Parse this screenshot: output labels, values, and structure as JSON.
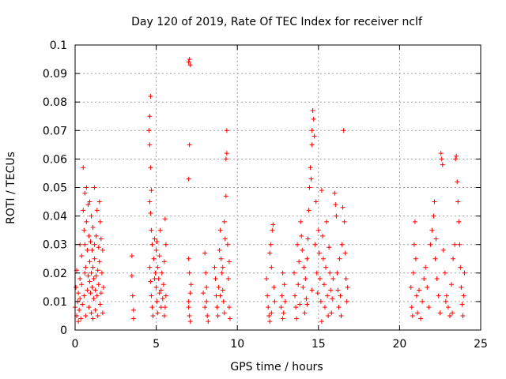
{
  "chart_data": {
    "type": "scatter",
    "title": "Day 120 of 2019, Rate Of TEC Index for receiver nclf",
    "xlabel": "GPS time / hours",
    "ylabel": "ROTI / TECUs",
    "xlim": [
      0,
      25
    ],
    "ylim": [
      0,
      0.1
    ],
    "xticks": [
      0,
      5,
      10,
      15,
      20,
      25
    ],
    "xtick_labels": [
      "0",
      "5",
      "10",
      "15",
      "20",
      "25"
    ],
    "yticks": [
      0,
      0.01,
      0.02,
      0.03,
      0.04,
      0.05,
      0.06,
      0.07,
      0.08,
      0.09,
      0.1
    ],
    "ytick_labels": [
      "0",
      "0.01",
      "0.02",
      "0.03",
      "0.04",
      "0.05",
      "0.06",
      "0.07",
      "0.08",
      "0.09",
      "0.1"
    ],
    "grid": true,
    "marker": "+",
    "color": "#ff0000",
    "series": [
      {
        "name": "ROTI",
        "points": [
          [
            0.0,
            0.008
          ],
          [
            0.05,
            0.015
          ],
          [
            0.1,
            0.005
          ],
          [
            0.1,
            0.021
          ],
          [
            0.15,
            0.01
          ],
          [
            0.2,
            0.003
          ],
          [
            0.2,
            0.013
          ],
          [
            0.25,
            0.007
          ],
          [
            0.3,
            0.018
          ],
          [
            0.3,
            0.011
          ],
          [
            0.35,
            0.004
          ],
          [
            0.4,
            0.026
          ],
          [
            0.4,
            0.016
          ],
          [
            0.45,
            0.009
          ],
          [
            0.5,
            0.057
          ],
          [
            0.5,
            0.042
          ],
          [
            0.55,
            0.035
          ],
          [
            0.55,
            0.012
          ],
          [
            0.6,
            0.048
          ],
          [
            0.6,
            0.03
          ],
          [
            0.65,
            0.022
          ],
          [
            0.65,
            0.005
          ],
          [
            0.7,
            0.05
          ],
          [
            0.7,
            0.038
          ],
          [
            0.75,
            0.028
          ],
          [
            0.75,
            0.014
          ],
          [
            0.8,
            0.044
          ],
          [
            0.8,
            0.019
          ],
          [
            0.85,
            0.033
          ],
          [
            0.85,
            0.008
          ],
          [
            0.9,
            0.045
          ],
          [
            0.9,
            0.024
          ],
          [
            0.95,
            0.013
          ],
          [
            0.95,
            0.031
          ],
          [
            1.0,
            0.04
          ],
          [
            1.0,
            0.02
          ],
          [
            1.0,
            0.006
          ],
          [
            1.05,
            0.028
          ],
          [
            1.05,
            0.015
          ],
          [
            1.1,
            0.036
          ],
          [
            1.1,
            0.022
          ],
          [
            1.1,
            0.004
          ],
          [
            1.15,
            0.018
          ],
          [
            1.15,
            0.011
          ],
          [
            1.2,
            0.05
          ],
          [
            1.2,
            0.025
          ],
          [
            1.25,
            0.014
          ],
          [
            1.25,
            0.007
          ],
          [
            1.3,
            0.033
          ],
          [
            1.3,
            0.019
          ],
          [
            1.35,
            0.042
          ],
          [
            1.35,
            0.012
          ],
          [
            1.4,
            0.021
          ],
          [
            1.4,
            0.005
          ],
          [
            1.45,
            0.029
          ],
          [
            1.45,
            0.016
          ],
          [
            1.5,
            0.045
          ],
          [
            1.5,
            0.024
          ],
          [
            1.55,
            0.038
          ],
          [
            1.55,
            0.009
          ],
          [
            1.6,
            0.032
          ],
          [
            1.6,
            0.013
          ],
          [
            1.65,
            0.02
          ],
          [
            1.7,
            0.028
          ],
          [
            1.7,
            0.006
          ],
          [
            1.75,
            0.015
          ],
          [
            0.3,
            0.03
          ],
          [
            0.6,
            0.02
          ],
          [
            0.9,
            0.017
          ],
          [
            1.2,
            0.03
          ],
          [
            3.5,
            0.026
          ],
          [
            3.5,
            0.019
          ],
          [
            3.55,
            0.012
          ],
          [
            3.6,
            0.007
          ],
          [
            3.6,
            0.004
          ],
          [
            4.55,
            0.07
          ],
          [
            4.6,
            0.075
          ],
          [
            4.65,
            0.082
          ],
          [
            4.6,
            0.065
          ],
          [
            4.65,
            0.057
          ],
          [
            4.7,
            0.049
          ],
          [
            4.6,
            0.045
          ],
          [
            4.65,
            0.041
          ],
          [
            4.7,
            0.035
          ],
          [
            4.75,
            0.03
          ],
          [
            4.6,
            0.022
          ],
          [
            4.65,
            0.017
          ],
          [
            4.7,
            0.012
          ],
          [
            4.75,
            0.008
          ],
          [
            4.8,
            0.005
          ],
          [
            4.85,
            0.025
          ],
          [
            4.9,
            0.032
          ],
          [
            4.95,
            0.02
          ],
          [
            5.0,
            0.015
          ],
          [
            5.0,
            0.028
          ],
          [
            5.05,
            0.01
          ],
          [
            5.1,
            0.022
          ],
          [
            5.1,
            0.006
          ],
          [
            5.15,
            0.018
          ],
          [
            5.2,
            0.013
          ],
          [
            5.25,
            0.035
          ],
          [
            5.3,
            0.008
          ],
          [
            5.35,
            0.02
          ],
          [
            5.4,
            0.011
          ],
          [
            5.45,
            0.016
          ],
          [
            5.5,
            0.005
          ],
          [
            5.5,
            0.024
          ],
          [
            5.55,
            0.039
          ],
          [
            5.6,
            0.012
          ],
          [
            5.6,
            0.03
          ],
          [
            5.55,
            0.008
          ],
          [
            5.3,
            0.014
          ],
          [
            5.2,
            0.026
          ],
          [
            4.9,
            0.018
          ],
          [
            5.05,
            0.031
          ],
          [
            7.0,
            0.094
          ],
          [
            7.05,
            0.095
          ],
          [
            7.1,
            0.093
          ],
          [
            7.05,
            0.065
          ],
          [
            7.0,
            0.053
          ],
          [
            7.0,
            0.025
          ],
          [
            7.05,
            0.02
          ],
          [
            7.1,
            0.013
          ],
          [
            7.0,
            0.01
          ],
          [
            7.05,
            0.005
          ],
          [
            7.1,
            0.003
          ],
          [
            7.0,
            0.008
          ],
          [
            7.15,
            0.016
          ],
          [
            7.9,
            0.013
          ],
          [
            8.0,
            0.027
          ],
          [
            8.05,
            0.02
          ],
          [
            8.1,
            0.01
          ],
          [
            8.15,
            0.005
          ],
          [
            8.2,
            0.003
          ],
          [
            8.0,
            0.008
          ],
          [
            8.1,
            0.015
          ],
          [
            8.6,
            0.022
          ],
          [
            8.65,
            0.018
          ],
          [
            8.7,
            0.012
          ],
          [
            8.75,
            0.008
          ],
          [
            8.8,
            0.005
          ],
          [
            8.85,
            0.015
          ],
          [
            8.9,
            0.028
          ],
          [
            8.95,
            0.035
          ],
          [
            9.0,
            0.025
          ],
          [
            9.05,
            0.02
          ],
          [
            9.1,
            0.014
          ],
          [
            9.15,
            0.01
          ],
          [
            9.2,
            0.006
          ],
          [
            9.25,
            0.032
          ],
          [
            9.3,
            0.047
          ],
          [
            9.3,
            0.06
          ],
          [
            9.35,
            0.062
          ],
          [
            9.35,
            0.07
          ],
          [
            9.4,
            0.03
          ],
          [
            9.45,
            0.018
          ],
          [
            9.5,
            0.024
          ],
          [
            9.5,
            0.008
          ],
          [
            9.55,
            0.004
          ],
          [
            8.95,
            0.012
          ],
          [
            9.1,
            0.022
          ],
          [
            9.2,
            0.038
          ],
          [
            11.8,
            0.018
          ],
          [
            11.85,
            0.012
          ],
          [
            11.9,
            0.008
          ],
          [
            11.95,
            0.005
          ],
          [
            12.0,
            0.027
          ],
          [
            12.05,
            0.03
          ],
          [
            12.1,
            0.022
          ],
          [
            12.15,
            0.035
          ],
          [
            12.2,
            0.037
          ],
          [
            12.25,
            0.015
          ],
          [
            12.3,
            0.01
          ],
          [
            12.0,
            0.003
          ],
          [
            12.1,
            0.006
          ],
          [
            12.7,
            0.008
          ],
          [
            12.75,
            0.012
          ],
          [
            12.8,
            0.004
          ],
          [
            12.85,
            0.006
          ],
          [
            12.9,
            0.016
          ],
          [
            12.95,
            0.01
          ],
          [
            12.8,
            0.02
          ],
          [
            13.5,
            0.02
          ],
          [
            13.55,
            0.012
          ],
          [
            13.6,
            0.008
          ],
          [
            13.65,
            0.004
          ],
          [
            13.7,
            0.03
          ],
          [
            13.75,
            0.016
          ],
          [
            13.8,
            0.024
          ],
          [
            13.85,
            0.009
          ],
          [
            13.9,
            0.038
          ],
          [
            13.95,
            0.033
          ],
          [
            14.0,
            0.028
          ],
          [
            14.05,
            0.015
          ],
          [
            14.1,
            0.022
          ],
          [
            14.15,
            0.006
          ],
          [
            14.2,
            0.018
          ],
          [
            14.25,
            0.011
          ],
          [
            14.3,
            0.025
          ],
          [
            14.35,
            0.032
          ],
          [
            14.4,
            0.042
          ],
          [
            14.45,
            0.05
          ],
          [
            14.5,
            0.057
          ],
          [
            14.55,
            0.053
          ],
          [
            14.6,
            0.065
          ],
          [
            14.6,
            0.07
          ],
          [
            14.65,
            0.077
          ],
          [
            14.7,
            0.074
          ],
          [
            14.75,
            0.068
          ],
          [
            14.8,
            0.03
          ],
          [
            14.85,
            0.045
          ],
          [
            14.9,
            0.02
          ],
          [
            14.95,
            0.013
          ],
          [
            15.0,
            0.035
          ],
          [
            15.05,
            0.027
          ],
          [
            15.1,
            0.018
          ],
          [
            15.15,
            0.01
          ],
          [
            15.2,
            0.049
          ],
          [
            15.25,
            0.033
          ],
          [
            15.3,
            0.025
          ],
          [
            15.35,
            0.016
          ],
          [
            15.4,
            0.008
          ],
          [
            15.45,
            0.022
          ],
          [
            15.5,
            0.038
          ],
          [
            15.55,
            0.012
          ],
          [
            15.6,
            0.005
          ],
          [
            15.65,
            0.029
          ],
          [
            15.7,
            0.02
          ],
          [
            15.75,
            0.014
          ],
          [
            15.8,
            0.006
          ],
          [
            15.85,
            0.011
          ],
          [
            15.9,
            0.018
          ],
          [
            16.0,
            0.048
          ],
          [
            16.05,
            0.044
          ],
          [
            16.1,
            0.04
          ],
          [
            16.15,
            0.02
          ],
          [
            16.2,
            0.014
          ],
          [
            16.25,
            0.008
          ],
          [
            16.3,
            0.025
          ],
          [
            16.35,
            0.012
          ],
          [
            16.4,
            0.005
          ],
          [
            16.45,
            0.03
          ],
          [
            16.5,
            0.043
          ],
          [
            16.55,
            0.07
          ],
          [
            16.6,
            0.038
          ],
          [
            16.65,
            0.027
          ],
          [
            16.7,
            0.018
          ],
          [
            16.75,
            0.01
          ],
          [
            16.8,
            0.015
          ],
          [
            14.3,
            0.009
          ],
          [
            14.6,
            0.014
          ],
          [
            15.2,
            0.003
          ],
          [
            20.7,
            0.015
          ],
          [
            20.75,
            0.008
          ],
          [
            20.8,
            0.005
          ],
          [
            20.85,
            0.02
          ],
          [
            20.9,
            0.03
          ],
          [
            20.95,
            0.038
          ],
          [
            21.0,
            0.025
          ],
          [
            21.05,
            0.012
          ],
          [
            21.1,
            0.006
          ],
          [
            21.3,
            0.004
          ],
          [
            21.4,
            0.01
          ],
          [
            21.5,
            0.018
          ],
          [
            21.6,
            0.022
          ],
          [
            21.7,
            0.015
          ],
          [
            21.8,
            0.008
          ],
          [
            21.9,
            0.03
          ],
          [
            22.0,
            0.035
          ],
          [
            22.1,
            0.04
          ],
          [
            22.15,
            0.045
          ],
          [
            22.2,
            0.025
          ],
          [
            22.3,
            0.018
          ],
          [
            22.4,
            0.012
          ],
          [
            22.5,
            0.006
          ],
          [
            22.55,
            0.062
          ],
          [
            22.6,
            0.06
          ],
          [
            22.65,
            0.058
          ],
          [
            22.7,
            0.028
          ],
          [
            22.8,
            0.02
          ],
          [
            22.9,
            0.012
          ],
          [
            23.0,
            0.008
          ],
          [
            23.1,
            0.005
          ],
          [
            23.2,
            0.016
          ],
          [
            23.3,
            0.025
          ],
          [
            23.4,
            0.03
          ],
          [
            23.45,
            0.06
          ],
          [
            23.5,
            0.061
          ],
          [
            23.55,
            0.052
          ],
          [
            23.6,
            0.045
          ],
          [
            23.65,
            0.038
          ],
          [
            23.7,
            0.03
          ],
          [
            23.75,
            0.022
          ],
          [
            23.8,
            0.015
          ],
          [
            23.85,
            0.009
          ],
          [
            23.9,
            0.005
          ],
          [
            23.95,
            0.012
          ],
          [
            24.0,
            0.02
          ],
          [
            22.25,
            0.032
          ],
          [
            22.85,
            0.01
          ],
          [
            23.25,
            0.006
          ],
          [
            21.2,
            0.014
          ]
        ]
      }
    ]
  }
}
